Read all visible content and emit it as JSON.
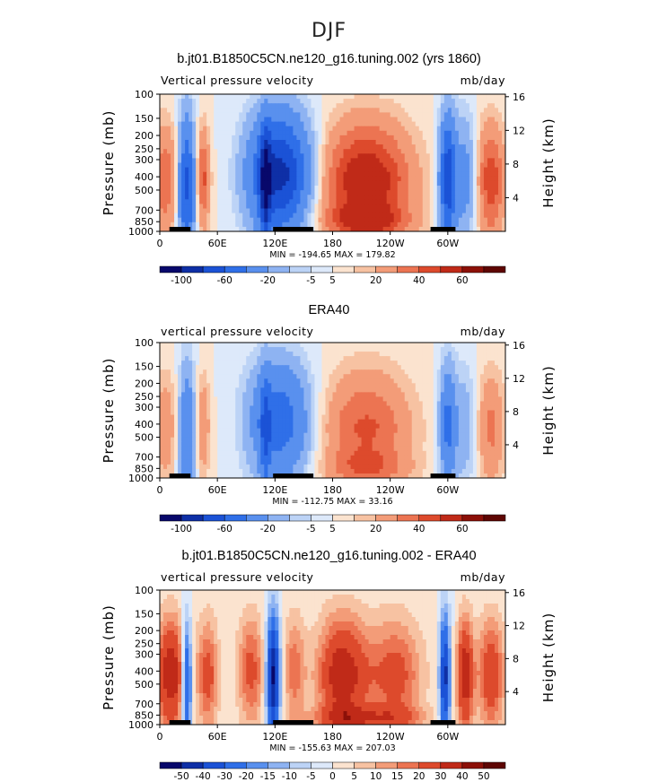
{
  "figure": {
    "title": "DJF"
  },
  "chart_data": [
    {
      "type": "heatmap",
      "title": "b.jt01.B1850C5CN.ne120_g16.tuning.002 (yrs 1860)",
      "left_label": "Vertical pressure velocity",
      "units": "mb/day",
      "ylabel": "Pressure (mb)",
      "ylabel_right": "Height (km)",
      "x_ticks": [
        "0",
        "60E",
        "120E",
        "180",
        "120W",
        "60W"
      ],
      "y_ticks": [
        "100",
        "150",
        "200",
        "250",
        "300",
        "400",
        "500",
        "700",
        "850",
        "1000"
      ],
      "y_right_ticks": [
        "16",
        "12",
        "8",
        "4"
      ],
      "min": -194.65,
      "max": 179.82,
      "stats": "MIN = -194.65  MAX = 179.82",
      "colorbar_labels": [
        "-100",
        "-60",
        "-20",
        "-5",
        "5",
        "20",
        "40",
        "60"
      ],
      "levels": [
        -100,
        -80,
        -60,
        -40,
        -20,
        -10,
        -5,
        0,
        5,
        10,
        20,
        30,
        40,
        60,
        80
      ],
      "field_ids": [
        3,
        3,
        3,
        3,
        3,
        3
      ],
      "scale": 1.0,
      "diff": false
    },
    {
      "type": "heatmap",
      "title": "ERA40",
      "left_label": "vertical pressure velocity",
      "units": "mb/day",
      "ylabel": "Pressure (mb)",
      "ylabel_right": "Height (km)",
      "x_ticks": [
        "0",
        "60E",
        "120E",
        "180",
        "120W",
        "60W"
      ],
      "y_ticks": [
        "100",
        "150",
        "200",
        "250",
        "300",
        "400",
        "500",
        "700",
        "850",
        "1000"
      ],
      "y_right_ticks": [
        "16",
        "12",
        "8",
        "4"
      ],
      "min": -112.75,
      "max": 33.16,
      "stats": "MIN = -112.75  MAX =  33.16",
      "colorbar_labels": [
        "-100",
        "-60",
        "-20",
        "-5",
        "5",
        "20",
        "40",
        "60"
      ],
      "levels": [
        -100,
        -80,
        -60,
        -40,
        -20,
        -10,
        -5,
        0,
        5,
        10,
        20,
        30,
        40,
        60,
        80
      ],
      "scale": 0.6,
      "diff": false
    },
    {
      "type": "heatmap",
      "title": "b.jt01.B1850C5CN.ne120_g16.tuning.002 - ERA40",
      "left_label": "vertical pressure velocity",
      "units": "mb/day",
      "ylabel": "Pressure (mb)",
      "ylabel_right": "Height (km)",
      "x_ticks": [
        "0",
        "60E",
        "120E",
        "180",
        "120W",
        "60W"
      ],
      "y_ticks": [
        "100",
        "150",
        "200",
        "250",
        "300",
        "400",
        "500",
        "700",
        "850",
        "1000"
      ],
      "y_right_ticks": [
        "16",
        "12",
        "8",
        "4"
      ],
      "min": -155.63,
      "max": 207.03,
      "stats": "MIN = -155.63  MAX = 207.03",
      "colorbar_labels": [
        "-50",
        "-40",
        "-30",
        "-20",
        "-15",
        "-10",
        "-5",
        "0",
        "5",
        "10",
        "15",
        "20",
        "30",
        "40",
        "50"
      ],
      "levels": [
        -50,
        -40,
        -30,
        -20,
        -15,
        -10,
        -5,
        0,
        5,
        10,
        15,
        20,
        30,
        40,
        50
      ],
      "scale": 1.0,
      "diff": true
    }
  ],
  "colors": {
    "palette": [
      "#08086b",
      "#0e2fa6",
      "#1b52d6",
      "#2f6fe8",
      "#5990ee",
      "#8eb3f2",
      "#bcd3f6",
      "#dde9fa",
      "#fbe3cf",
      "#f7c2a2",
      "#f39c78",
      "#ec7452",
      "#dd4a2c",
      "#c02a18",
      "#8c1008",
      "#5e0603"
    ]
  }
}
